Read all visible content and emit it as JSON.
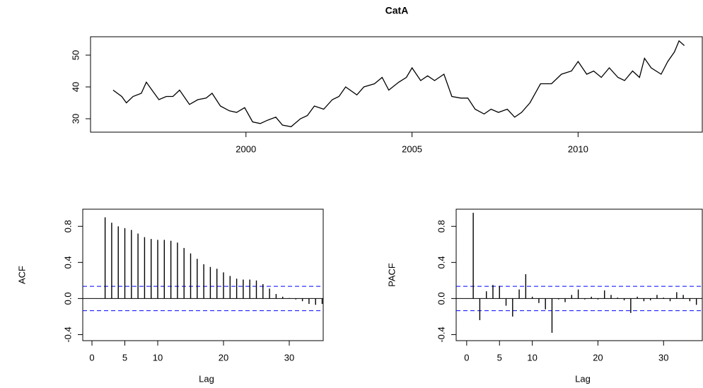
{
  "chart_data": [
    {
      "type": "line",
      "title": "CatA",
      "color": "#000000",
      "x": [
        1996.0,
        1996.26,
        1996.4,
        1996.6,
        1996.85,
        1997.0,
        1997.17,
        1997.38,
        1997.6,
        1997.8,
        1998.0,
        1998.3,
        1998.55,
        1998.8,
        1998.98,
        1999.23,
        1999.5,
        1999.72,
        1999.96,
        2000.2,
        2000.43,
        2000.64,
        2000.9,
        2001.1,
        2001.36,
        2001.64,
        2001.85,
        2002.06,
        2002.34,
        2002.6,
        2002.8,
        2003.0,
        2003.34,
        2003.55,
        2003.87,
        2004.1,
        2004.3,
        2004.6,
        2004.83,
        2005.0,
        2005.26,
        2005.47,
        2005.68,
        2005.96,
        2006.2,
        2006.47,
        2006.68,
        2006.9,
        2007.17,
        2007.38,
        2007.6,
        2007.87,
        2008.09,
        2008.3,
        2008.55,
        2008.87,
        2009.2,
        2009.5,
        2009.8,
        2010.0,
        2010.26,
        2010.47,
        2010.7,
        2010.94,
        2011.2,
        2011.4,
        2011.64,
        2011.85,
        2012.0,
        2012.2,
        2012.5,
        2012.7,
        2012.9,
        2013.04,
        2013.2
      ],
      "values": [
        39,
        37,
        35,
        37,
        38,
        41.5,
        39,
        36,
        37,
        37,
        39,
        34.5,
        36,
        36.5,
        38,
        34,
        32.5,
        32,
        33.5,
        29,
        28.5,
        29.5,
        30.5,
        28,
        27.5,
        30,
        31,
        34,
        33,
        36,
        37,
        40,
        37.5,
        40,
        41,
        43,
        39,
        41.5,
        43,
        46,
        42,
        43.5,
        42,
        44,
        37,
        36.5,
        36.5,
        33,
        31.5,
        33,
        32,
        33,
        30.5,
        32,
        35,
        41,
        41,
        44,
        45,
        48,
        44,
        45,
        43,
        46,
        43,
        42,
        45,
        43,
        49,
        46,
        44,
        48,
        51,
        54.5,
        53
      ],
      "xlim": [
        1995.32,
        2013.74
      ],
      "ylim": [
        25.78,
        55.78
      ],
      "xticks": [
        2000,
        2005,
        2010
      ],
      "yticks": [
        30,
        40,
        50
      ]
    },
    {
      "type": "bar",
      "xlabel": "Lag",
      "ylabel": "ACF",
      "color": "#000000",
      "conf_color": "#0000ff",
      "conf_lines": [
        0.135,
        -0.135
      ],
      "x": [
        2,
        3,
        4,
        5,
        6,
        7,
        8,
        9,
        10,
        11,
        12,
        13,
        14,
        15,
        16,
        17,
        18,
        19,
        20,
        21,
        22,
        23,
        24,
        25,
        26,
        27,
        28,
        29,
        30,
        31,
        32,
        33,
        34,
        35
      ],
      "values": [
        0.9,
        0.84,
        0.8,
        0.78,
        0.76,
        0.72,
        0.68,
        0.66,
        0.65,
        0.65,
        0.64,
        0.62,
        0.56,
        0.5,
        0.44,
        0.38,
        0.35,
        0.33,
        0.29,
        0.25,
        0.22,
        0.21,
        0.21,
        0.2,
        0.16,
        0.11,
        0.05,
        0.02,
        0.005,
        -0.01,
        -0.03,
        -0.06,
        -0.07,
        -0.06
      ],
      "xlim": [
        -1.4,
        35.16
      ],
      "ylim": [
        -0.467,
        0.99
      ],
      "xticks": [
        0,
        5,
        10,
        20,
        30
      ],
      "yticks": [
        -0.4,
        {
          "value": 0,
          "label": "0.0"
        },
        0.4,
        0.8
      ]
    },
    {
      "type": "bar",
      "xlabel": "Lag",
      "ylabel": "PACF",
      "color": "#000000",
      "conf_color": "#0000ff",
      "conf_lines": [
        0.135,
        -0.135
      ],
      "x": [
        1,
        2,
        3,
        4,
        5,
        6,
        7,
        8,
        9,
        10,
        11,
        12,
        13,
        14,
        15,
        16,
        17,
        18,
        19,
        20,
        21,
        22,
        23,
        24,
        25,
        26,
        27,
        28,
        29,
        30,
        31,
        32,
        33,
        34,
        35
      ],
      "values": [
        0.95,
        -0.24,
        0.08,
        0.15,
        0.14,
        -0.08,
        -0.2,
        0.1,
        0.27,
        0.02,
        -0.05,
        -0.12,
        -0.38,
        -0.01,
        -0.04,
        0.04,
        0.1,
        -0.01,
        0.02,
        -0.01,
        0.09,
        0.04,
        0.01,
        -0.02,
        -0.16,
        0.02,
        -0.03,
        -0.02,
        0.04,
        0.01,
        -0.03,
        0.07,
        0.04,
        -0.03,
        -0.07
      ],
      "xlim": [
        -1.6,
        35.9
      ],
      "ylim": [
        -0.467,
        0.99
      ],
      "xticks": [
        0,
        5,
        10,
        20,
        30
      ],
      "yticks": [
        -0.4,
        {
          "value": 0,
          "label": "0.0"
        },
        0.4,
        0.8
      ]
    }
  ]
}
